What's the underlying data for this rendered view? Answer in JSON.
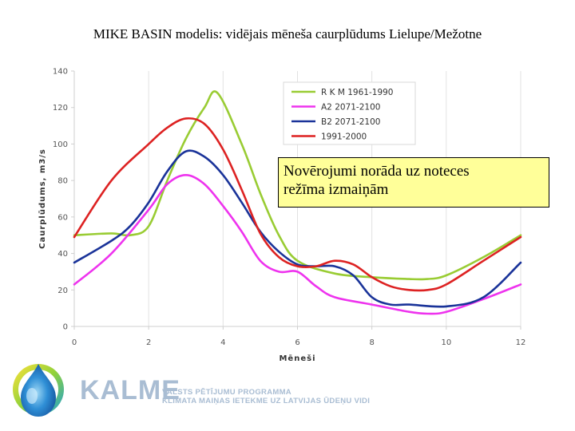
{
  "slide": {
    "title": "MIKE BASIN modelis: vidējais mēneša caurplūdums Lielupe/Mežotne",
    "callout": [
      "Novērojumi norāda uz noteces",
      "režīma izmaiņām"
    ]
  },
  "footer": {
    "logo_text": "KALME",
    "program_line1": "VALSTS PĒTĪJUMU PROGRAMMA",
    "program_line2": "KLIMATA MAIŅAS IETEKME UZ LATVIJAS ŪDEŅU VIDI"
  },
  "chart_data": {
    "type": "line",
    "xlabel": "Mēneši",
    "ylabel": "Caurplūdums, m3/s",
    "xlim": [
      0,
      12
    ],
    "ylim": [
      0,
      140
    ],
    "xticks": [
      0,
      2,
      4,
      6,
      8,
      10,
      12
    ],
    "yticks": [
      0,
      20,
      40,
      60,
      80,
      100,
      120,
      140
    ],
    "grid": "vertical",
    "legend_position": "top-right",
    "series": [
      {
        "name": "R K M 1961-1990",
        "color": "#99cc33",
        "x": [
          0,
          1,
          1.5,
          2,
          2.5,
          3,
          3.5,
          3.85,
          4.5,
          5,
          5.5,
          6,
          7,
          8,
          9,
          9.5,
          10,
          11,
          12
        ],
        "y": [
          50,
          51,
          50,
          55,
          80,
          103,
          120,
          128,
          100,
          73,
          50,
          36,
          29,
          27,
          26,
          26,
          28,
          38,
          50
        ]
      },
      {
        "name": "A2 2071-2100",
        "color": "#ee33ee",
        "x": [
          0,
          1,
          2,
          2.5,
          3,
          3.5,
          4,
          4.5,
          5,
          5.5,
          6,
          6.5,
          7,
          8,
          9,
          9.5,
          10,
          11,
          12
        ],
        "y": [
          23,
          40,
          64,
          78,
          83,
          78,
          66,
          52,
          36,
          30,
          30,
          22,
          16,
          12,
          8,
          7,
          8,
          15,
          23
        ]
      },
      {
        "name": "B2 2071-2100",
        "color": "#1a3399",
        "x": [
          0,
          1,
          1.5,
          2,
          2.5,
          3,
          3.5,
          4,
          4.5,
          5,
          5.5,
          6,
          6.5,
          7,
          7.5,
          8,
          8.5,
          9,
          10,
          11,
          12
        ],
        "y": [
          35,
          47,
          55,
          68,
          85,
          96,
          93,
          83,
          68,
          52,
          41,
          34,
          33,
          33,
          28,
          16,
          12,
          12,
          11,
          16,
          35
        ]
      },
      {
        "name": "1991-2000",
        "color": "#dd2222",
        "x": [
          0,
          1,
          2,
          2.5,
          3,
          3.5,
          4,
          4.5,
          5,
          5.5,
          6,
          6.5,
          7,
          7.5,
          8,
          8.5,
          9,
          9.5,
          10,
          11,
          12
        ],
        "y": [
          49,
          80,
          100,
          109,
          114,
          111,
          97,
          75,
          51,
          38,
          33,
          33,
          36,
          34,
          27,
          22,
          20,
          20,
          23,
          36,
          49
        ]
      }
    ]
  }
}
